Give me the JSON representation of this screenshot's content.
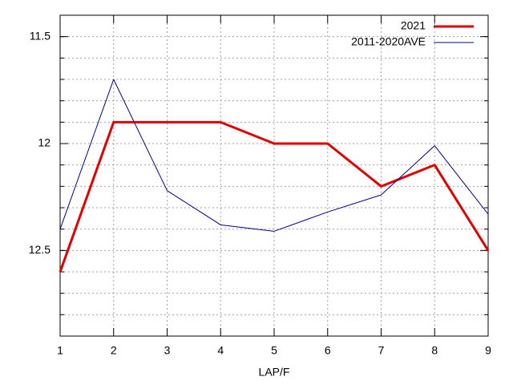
{
  "chart_data": {
    "type": "line",
    "x": [
      1,
      2,
      3,
      4,
      5,
      6,
      7,
      8,
      9
    ],
    "xlim": [
      1,
      9
    ],
    "xticks": [
      1,
      2,
      3,
      4,
      5,
      6,
      7,
      8,
      9
    ],
    "ylim": [
      12.9,
      11.4
    ],
    "yticks": [
      11.5,
      12,
      12.5
    ],
    "yminorticks": [
      11.4,
      11.5,
      11.6,
      11.7,
      11.8,
      11.9,
      12.0,
      12.1,
      12.2,
      12.3,
      12.4,
      12.5,
      12.6,
      12.7,
      12.8,
      12.9
    ],
    "xlabel": "LAP/F",
    "grid": true,
    "legend": "top-right",
    "series": [
      {
        "name": "2021",
        "color": "#e00000",
        "width": 3,
        "values": [
          12.6,
          11.9,
          11.9,
          11.9,
          12.0,
          12.0,
          12.2,
          12.1,
          12.5
        ]
      },
      {
        "name": "2011-2020AVE",
        "color": "#00008b",
        "width": 1,
        "values": [
          12.4,
          11.7,
          12.22,
          12.38,
          12.41,
          12.32,
          12.24,
          12.01,
          12.33
        ]
      }
    ]
  }
}
